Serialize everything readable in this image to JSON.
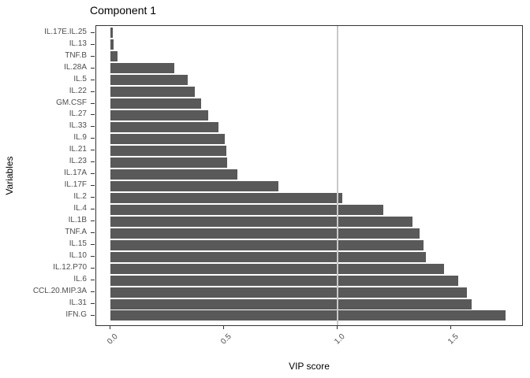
{
  "figure": {
    "title": "Component 1",
    "x_axis_title": "VIP score",
    "y_axis_title": "Variables"
  },
  "chart_data": {
    "type": "bar",
    "orientation": "horizontal",
    "title": "Component 1",
    "xlabel": "VIP score",
    "ylabel": "Variables",
    "categories": [
      "IL.17E.IL.25",
      "IL.13",
      "TNF.B",
      "IL.28A",
      "IL.5",
      "IL.22",
      "GM.CSF",
      "IL.27",
      "IL.33",
      "IL.9",
      "IL.21",
      "IL.23",
      "IL.17A",
      "IL.17F",
      "IL.2",
      "IL.4",
      "IL.1B",
      "TNF.A",
      "IL.15",
      "IL.10",
      "IL.12.P70",
      "IL.6",
      "CCL.20.MIP.3A",
      "IL.31",
      "IFN.G"
    ],
    "values": [
      0.01,
      0.015,
      0.03,
      0.28,
      0.34,
      0.37,
      0.4,
      0.43,
      0.475,
      0.505,
      0.51,
      0.515,
      0.56,
      0.74,
      1.02,
      1.2,
      1.33,
      1.36,
      1.38,
      1.39,
      1.47,
      1.53,
      1.57,
      1.59,
      1.74
    ],
    "x_ticks": [
      0.0,
      0.5,
      1.0,
      1.5
    ],
    "x_tick_labels": [
      "0.0",
      "0.5",
      "1.0",
      "1.5"
    ],
    "xlim": [
      -0.06,
      1.82
    ],
    "reference_line_x": 1.0,
    "grid": "off",
    "legend": "none",
    "bar_color": "#595959",
    "reference_line_color": "#C9C9C9",
    "panel_border_color": "#333333",
    "axis_text_color": "#4D4D4D",
    "title_color": "#000000"
  }
}
